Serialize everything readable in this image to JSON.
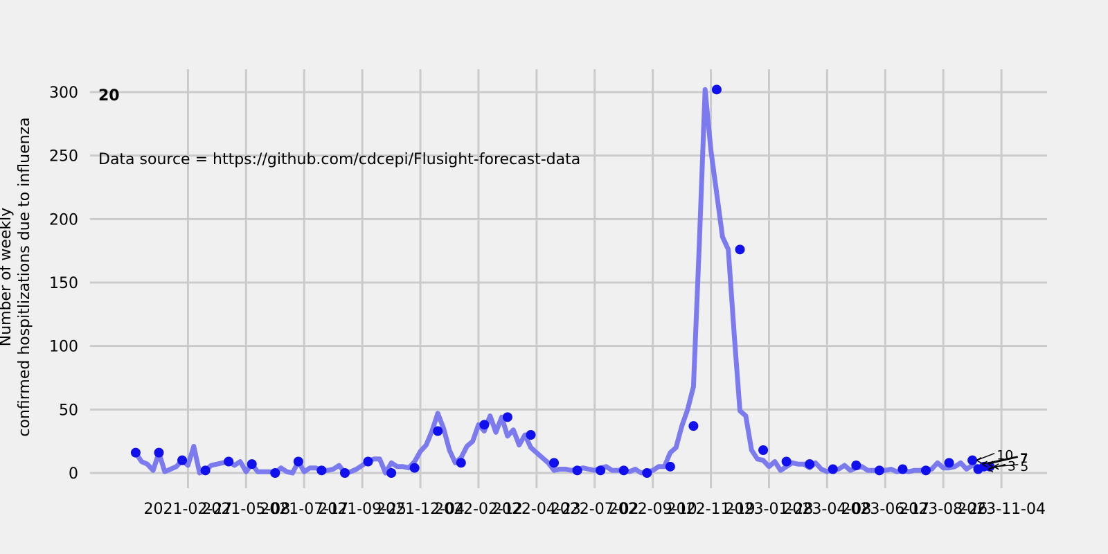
{
  "chart_data": {
    "type": "line",
    "panel_id": "20",
    "annotation": "Data source = https://github.com/cdcepi/Flusight-forecast-data",
    "ylabel_line1": "Number of weekly",
    "ylabel_line2": "confirmed hospitlizations due to influenza",
    "xlabel": "",
    "ylim": [
      -12,
      318
    ],
    "y_ticks": [
      0,
      50,
      100,
      150,
      200,
      250,
      300
    ],
    "x_ticks": [
      "2021-02-27",
      "2021-05-08",
      "2021-07-17",
      "2021-09-25",
      "2021-12-04",
      "2022-02-12",
      "2022-04-23",
      "2022-07-02",
      "2022-09-10",
      "2022-11-19",
      "2023-01-28",
      "2023-04-08",
      "2023-06-17",
      "2023-08-26",
      "2023-11-04"
    ],
    "grid": true,
    "colors": {
      "line": "#7b7bef",
      "point": "#1010ee",
      "background": "#f0f0f0",
      "grid": "#cbcbcb"
    },
    "series": [
      {
        "values": [
          [
            "2020-12-26",
            16
          ],
          [
            "2021-01-02",
            9
          ],
          [
            "2021-01-09",
            7
          ],
          [
            "2021-01-16",
            2
          ],
          [
            "2021-01-23",
            16
          ],
          [
            "2021-01-30",
            1
          ],
          [
            "2021-02-06",
            3
          ],
          [
            "2021-02-13",
            5
          ],
          [
            "2021-02-20",
            10
          ],
          [
            "2021-02-27",
            6
          ],
          [
            "2021-03-06",
            21
          ],
          [
            "2021-03-13",
            0
          ],
          [
            "2021-03-20",
            2
          ],
          [
            "2021-03-27",
            6
          ],
          [
            "2021-04-03",
            7
          ],
          [
            "2021-04-10",
            8
          ],
          [
            "2021-04-17",
            9
          ],
          [
            "2021-04-24",
            6
          ],
          [
            "2021-05-01",
            9
          ],
          [
            "2021-05-08",
            1
          ],
          [
            "2021-05-15",
            7
          ],
          [
            "2021-05-22",
            1
          ],
          [
            "2021-05-29",
            1
          ],
          [
            "2021-06-05",
            1
          ],
          [
            "2021-06-12",
            0
          ],
          [
            "2021-06-19",
            4
          ],
          [
            "2021-06-26",
            1
          ],
          [
            "2021-07-03",
            0
          ],
          [
            "2021-07-10",
            9
          ],
          [
            "2021-07-17",
            1
          ],
          [
            "2021-07-24",
            4
          ],
          [
            "2021-07-31",
            4
          ],
          [
            "2021-08-07",
            2
          ],
          [
            "2021-08-14",
            2
          ],
          [
            "2021-08-21",
            3
          ],
          [
            "2021-08-28",
            6
          ],
          [
            "2021-09-04",
            0
          ],
          [
            "2021-09-11",
            1
          ],
          [
            "2021-09-18",
            3
          ],
          [
            "2021-09-25",
            6
          ],
          [
            "2021-10-02",
            9
          ],
          [
            "2021-10-09",
            11
          ],
          [
            "2021-10-16",
            11
          ],
          [
            "2021-10-23",
            0
          ],
          [
            "2021-10-30",
            8
          ],
          [
            "2021-11-06",
            5
          ],
          [
            "2021-11-13",
            5
          ],
          [
            "2021-11-20",
            4
          ],
          [
            "2021-11-27",
            9
          ],
          [
            "2021-12-04",
            17
          ],
          [
            "2021-12-11",
            22
          ],
          [
            "2021-12-18",
            33
          ],
          [
            "2021-12-25",
            47
          ],
          [
            "2022-01-01",
            35
          ],
          [
            "2022-01-08",
            18
          ],
          [
            "2022-01-15",
            8
          ],
          [
            "2022-01-22",
            12
          ],
          [
            "2022-01-29",
            21
          ],
          [
            "2022-02-05",
            25
          ],
          [
            "2022-02-12",
            38
          ],
          [
            "2022-02-19",
            33
          ],
          [
            "2022-02-26",
            45
          ],
          [
            "2022-03-05",
            32
          ],
          [
            "2022-03-12",
            44
          ],
          [
            "2022-03-19",
            29
          ],
          [
            "2022-03-26",
            34
          ],
          [
            "2022-04-02",
            22
          ],
          [
            "2022-04-09",
            30
          ],
          [
            "2022-04-16",
            20
          ],
          [
            "2022-04-23",
            16
          ],
          [
            "2022-04-30",
            12
          ],
          [
            "2022-05-07",
            8
          ],
          [
            "2022-05-14",
            2
          ],
          [
            "2022-05-21",
            3
          ],
          [
            "2022-05-28",
            3
          ],
          [
            "2022-06-04",
            2
          ],
          [
            "2022-06-11",
            3
          ],
          [
            "2022-06-18",
            4
          ],
          [
            "2022-06-25",
            3
          ],
          [
            "2022-07-02",
            2
          ],
          [
            "2022-07-09",
            4
          ],
          [
            "2022-07-16",
            5
          ],
          [
            "2022-07-23",
            2
          ],
          [
            "2022-07-30",
            2
          ],
          [
            "2022-08-06",
            3
          ],
          [
            "2022-08-13",
            1
          ],
          [
            "2022-08-20",
            3
          ],
          [
            "2022-08-27",
            0
          ],
          [
            "2022-09-03",
            1
          ],
          [
            "2022-09-10",
            2
          ],
          [
            "2022-09-17",
            5
          ],
          [
            "2022-09-24",
            5
          ],
          [
            "2022-10-01",
            16
          ],
          [
            "2022-10-08",
            20
          ],
          [
            "2022-10-15",
            37
          ],
          [
            "2022-10-22",
            50
          ],
          [
            "2022-10-29",
            68
          ],
          [
            "2022-11-05",
            180
          ],
          [
            "2022-11-12",
            302
          ],
          [
            "2022-11-19",
            254
          ],
          [
            "2022-11-26",
            220
          ],
          [
            "2022-12-03",
            186
          ],
          [
            "2022-12-10",
            176
          ],
          [
            "2022-12-17",
            110
          ],
          [
            "2022-12-24",
            49
          ],
          [
            "2022-12-31",
            45
          ],
          [
            "2023-01-07",
            18
          ],
          [
            "2023-01-14",
            11
          ],
          [
            "2023-01-21",
            10
          ],
          [
            "2023-01-28",
            5
          ],
          [
            "2023-02-04",
            9
          ],
          [
            "2023-02-11",
            2
          ],
          [
            "2023-02-18",
            5
          ],
          [
            "2023-02-25",
            8
          ],
          [
            "2023-03-04",
            7
          ],
          [
            "2023-03-11",
            7
          ],
          [
            "2023-03-18",
            4
          ],
          [
            "2023-03-25",
            8
          ],
          [
            "2023-04-01",
            3
          ],
          [
            "2023-04-08",
            1
          ],
          [
            "2023-04-15",
            3
          ],
          [
            "2023-04-22",
            3
          ],
          [
            "2023-04-29",
            6
          ],
          [
            "2023-05-06",
            2
          ],
          [
            "2023-05-13",
            4
          ],
          [
            "2023-05-20",
            5
          ],
          [
            "2023-05-27",
            2
          ],
          [
            "2023-06-03",
            2
          ],
          [
            "2023-06-10",
            2
          ],
          [
            "2023-06-17",
            2
          ],
          [
            "2023-06-24",
            3
          ],
          [
            "2023-07-01",
            1
          ],
          [
            "2023-07-08",
            2
          ],
          [
            "2023-07-15",
            1
          ],
          [
            "2023-07-22",
            2
          ],
          [
            "2023-07-29",
            2
          ],
          [
            "2023-08-05",
            3
          ],
          [
            "2023-08-12",
            3
          ],
          [
            "2023-08-19",
            8
          ],
          [
            "2023-08-26",
            4
          ],
          [
            "2023-09-02",
            4
          ],
          [
            "2023-09-09",
            5
          ],
          [
            "2023-09-16",
            8
          ],
          [
            "2023-09-23",
            3
          ],
          [
            "2023-09-30",
            6
          ],
          [
            "2023-10-07",
            5
          ]
        ],
        "markers": [
          [
            "2020-12-26",
            16
          ],
          [
            "2021-01-23",
            16
          ],
          [
            "2021-02-20",
            10
          ],
          [
            "2021-03-20",
            2
          ],
          [
            "2021-04-17",
            9
          ],
          [
            "2021-05-15",
            7
          ],
          [
            "2021-06-12",
            0
          ],
          [
            "2021-07-10",
            9
          ],
          [
            "2021-08-07",
            2
          ],
          [
            "2021-09-04",
            0
          ],
          [
            "2021-10-02",
            9
          ],
          [
            "2021-10-30",
            0
          ],
          [
            "2021-11-27",
            4
          ],
          [
            "2021-12-25",
            33
          ],
          [
            "2022-01-22",
            8
          ],
          [
            "2022-02-19",
            38
          ],
          [
            "2022-03-19",
            44
          ],
          [
            "2022-04-16",
            30
          ],
          [
            "2022-05-14",
            8
          ],
          [
            "2022-06-11",
            2
          ],
          [
            "2022-07-09",
            2
          ],
          [
            "2022-08-06",
            2
          ],
          [
            "2022-09-03",
            0
          ],
          [
            "2022-10-01",
            5
          ],
          [
            "2022-10-29",
            37
          ],
          [
            "2022-11-26",
            302
          ],
          [
            "2022-12-24",
            176
          ],
          [
            "2023-01-21",
            18
          ],
          [
            "2023-02-18",
            9
          ],
          [
            "2023-03-18",
            7
          ],
          [
            "2023-04-15",
            3
          ],
          [
            "2023-05-13",
            6
          ],
          [
            "2023-06-10",
            2
          ],
          [
            "2023-07-08",
            3
          ],
          [
            "2023-08-05",
            2
          ],
          [
            "2023-09-02",
            8
          ],
          [
            "2023-09-30",
            10
          ],
          [
            "2023-10-07",
            3
          ],
          [
            "2023-10-14",
            5
          ],
          [
            "2023-10-21",
            5
          ]
        ]
      }
    ],
    "point_labels": [
      {
        "text": "10",
        "date": "2023-09-30",
        "y": 10
      },
      {
        "text": "7",
        "date": "2023-10-07",
        "y": 7
      },
      {
        "text": "7",
        "date": "2023-10-14",
        "y": 7
      },
      {
        "text": "5",
        "date": "2023-10-21",
        "y": 5
      },
      {
        "text": "3",
        "date": "2023-10-14",
        "y": 3
      }
    ]
  }
}
